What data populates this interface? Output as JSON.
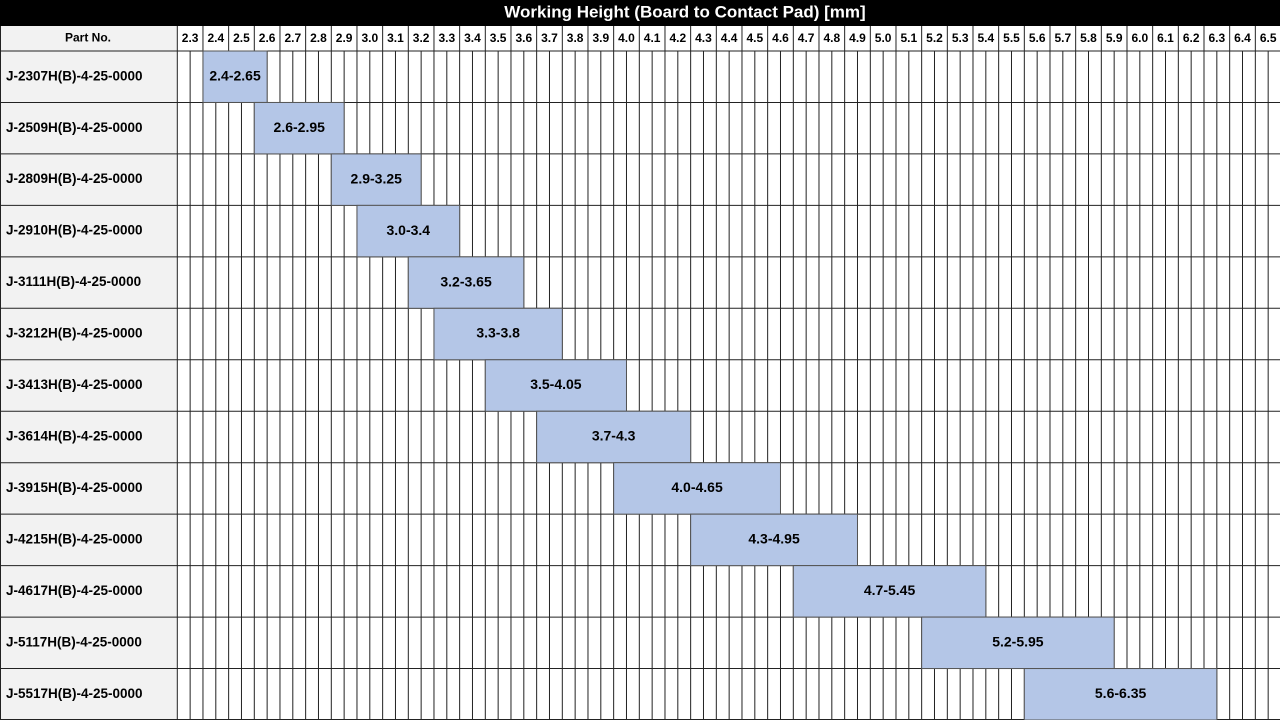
{
  "chart_data": {
    "type": "range-bar",
    "title": "Working Height (Board to Contact Pad) [mm]",
    "category_header": "Part No.",
    "categories": [
      "J-2307H(B)-4-25-0000",
      "J-2509H(B)-4-25-0000",
      "J-2809H(B)-4-25-0000",
      "J-2910H(B)-4-25-0000",
      "J-3111H(B)-4-25-0000",
      "J-3212H(B)-4-25-0000",
      "J-3413H(B)-4-25-0000",
      "J-3614H(B)-4-25-0000",
      "J-3915H(B)-4-25-0000",
      "J-4215H(B)-4-25-0000",
      "J-4617H(B)-4-25-0000",
      "J-5117H(B)-4-25-0000",
      "J-5517H(B)-4-25-0000"
    ],
    "low": [
      2.4,
      2.6,
      2.9,
      3.0,
      3.2,
      3.3,
      3.5,
      3.7,
      4.0,
      4.3,
      4.7,
      5.2,
      5.6
    ],
    "high": [
      2.65,
      2.95,
      3.25,
      3.4,
      3.65,
      3.8,
      4.05,
      4.3,
      4.65,
      4.95,
      5.45,
      5.95,
      6.35
    ],
    "value_labels": [
      "2.4-2.65",
      "2.6-2.95",
      "2.9-3.25",
      "3.0-3.4",
      "3.2-3.65",
      "3.3-3.8",
      "3.5-4.05",
      "3.7-4.3",
      "4.0-4.65",
      "4.3-4.95",
      "4.7-5.45",
      "5.2-5.95",
      "5.6-6.35"
    ],
    "color": "#b4c6e7",
    "xlim": [
      2.3,
      6.6
    ],
    "xticks": [
      2.3,
      2.4,
      2.5,
      2.6,
      2.7,
      2.8,
      2.9,
      {
        "value": 3,
        "label": "3.0"
      },
      3.1,
      3.2,
      3.3,
      3.4,
      3.5,
      3.6,
      3.7,
      3.8,
      3.9,
      {
        "value": 4,
        "label": "4.0"
      },
      4.1,
      4.2,
      4.3,
      4.4,
      4.5,
      4.6,
      4.7,
      4.8,
      4.9,
      {
        "value": 5,
        "label": "5.0"
      },
      5.1,
      5.2,
      5.3,
      5.4,
      5.5,
      5.6,
      5.7,
      5.8,
      5.9,
      {
        "value": 6,
        "label": "6.0"
      },
      6.1,
      6.2,
      6.3,
      6.4,
      6.5
    ],
    "grid": true
  }
}
